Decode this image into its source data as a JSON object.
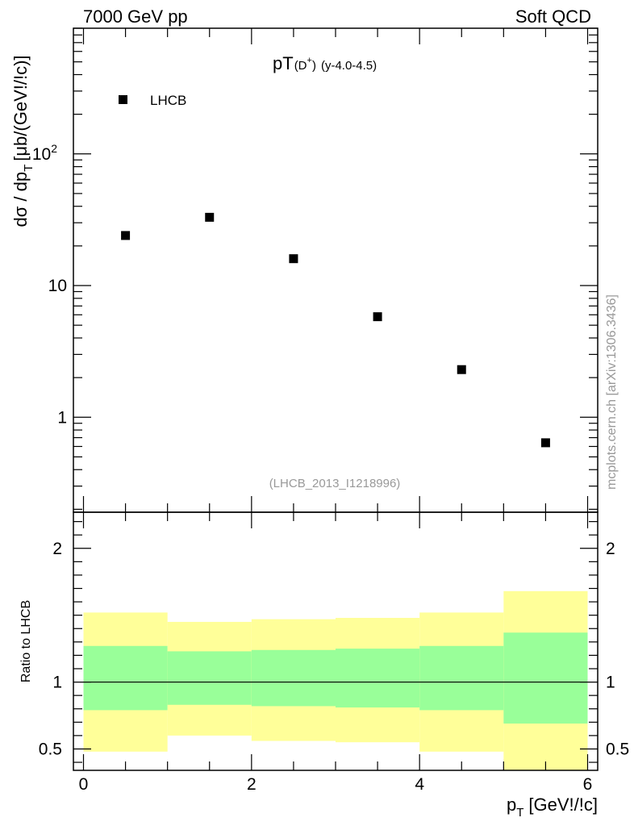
{
  "header": {
    "left": "7000 GeV pp",
    "right": "Soft QCD"
  },
  "side_label": "mcplots.cern.ch [arXiv:1306.3436]",
  "chart_data": [
    {
      "type": "scatter",
      "panel": "main",
      "title_main": "pT",
      "title_sub": "(D",
      "title_sup": "+",
      "title_close": ")",
      "title_range": "(y-4.0-4.5)",
      "ylabel": "dσ / dp",
      "ylabel_sub": "T",
      "ylabel_unit": "[μb/(GeV!/!c)]",
      "yscale": "log",
      "ylim": [
        0.19,
        900
      ],
      "xlim": [
        -0.12,
        6.12
      ],
      "y_ticks": [
        {
          "value": 1,
          "label": "1"
        },
        {
          "value": 10,
          "label": "10"
        },
        {
          "value": 100,
          "label": "10",
          "sup": "2"
        }
      ],
      "series": [
        {
          "name": "LHCB",
          "marker": "square",
          "color": "#000000",
          "x": [
            0.5,
            1.5,
            2.5,
            3.5,
            4.5,
            5.5
          ],
          "y": [
            24,
            33,
            16,
            5.8,
            2.3,
            0.64
          ]
        }
      ],
      "legend": "top-left",
      "watermark": "(LHCB_2013_I1218996)"
    },
    {
      "type": "area",
      "panel": "ratio",
      "ylabel": "Ratio to LHCB",
      "ylim": [
        0.34,
        2.27
      ],
      "xlim": [
        -0.12,
        6.12
      ],
      "y_ticks": [
        {
          "value": 0.5,
          "label": "0.5"
        },
        {
          "value": 1,
          "label": "1"
        },
        {
          "value": 2,
          "label": "2"
        }
      ],
      "x_ticks": [
        {
          "value": 0,
          "label": "0"
        },
        {
          "value": 2,
          "label": "2"
        },
        {
          "value": 4,
          "label": "4"
        },
        {
          "value": 6,
          "label": "6"
        }
      ],
      "xlabel": "p",
      "xlabel_sub": "T",
      "xlabel_unit": "[GeV!/!c]",
      "bins": [
        0,
        1,
        2,
        3,
        4,
        5,
        6
      ],
      "inner_band": {
        "color": "#99ff99",
        "low": [
          0.79,
          0.83,
          0.82,
          0.81,
          0.79,
          0.69
        ],
        "high": [
          1.27,
          1.23,
          1.24,
          1.25,
          1.27,
          1.37
        ]
      },
      "outer_band": {
        "color": "#ffff99",
        "low": [
          0.48,
          0.6,
          0.56,
          0.55,
          0.48,
          0.34
        ],
        "high": [
          1.52,
          1.45,
          1.47,
          1.48,
          1.52,
          1.68
        ]
      },
      "reference_line": 1
    }
  ]
}
